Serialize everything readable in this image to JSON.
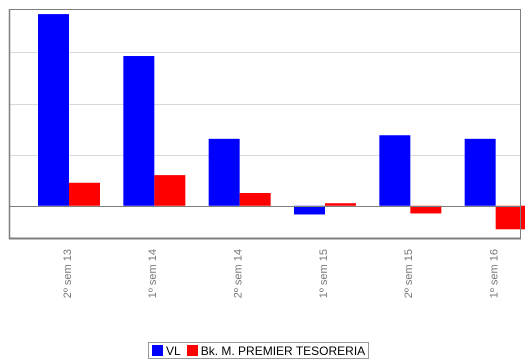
{
  "chart_data": {
    "type": "bar",
    "categories": [
      "2º sem 13",
      "1º sem 14",
      "2º sem 14",
      "1º sem 15",
      "2º sem 15",
      "1º sem 16"
    ],
    "series": [
      {
        "name": "VL",
        "color": "#0000ff",
        "values": [
          37.5,
          29.3,
          13.1,
          -1.7,
          13.8,
          13.1
        ]
      },
      {
        "name": "Bk. M. PREMIER TESORERIA",
        "color": "#ff0000",
        "values": [
          4.5,
          6.0,
          2.5,
          0.5,
          -1.5,
          -4.6
        ]
      }
    ],
    "title": "",
    "xlabel": "",
    "ylabel": "",
    "ylim": [
      -6.5,
      38.5
    ],
    "yticks": [
      0,
      10,
      20,
      30
    ],
    "grid": true,
    "legend": "bottom-center",
    "colors": {
      "axis": "#7f7f7f",
      "grid": "#d9d9d9",
      "tick_label": "#777777"
    }
  }
}
